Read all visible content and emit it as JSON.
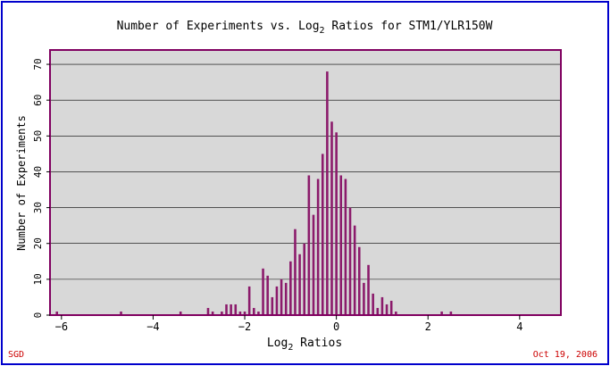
{
  "colors": {
    "border": "#0000cc",
    "plot_bg": "#d8d8d8",
    "plot_border": "#800060",
    "bar": "#8b1a6b",
    "grid": "#000000",
    "footer_text": "#cc0000"
  },
  "footer": {
    "left": "SGD",
    "right": "Oct 19, 2006"
  },
  "chart_data": {
    "type": "bar",
    "title_prefix": "Number of Experiments vs. Log",
    "title_sub": "2",
    "title_suffix": " Ratios for STM1/YLR150W",
    "xlabel_prefix": "Log",
    "xlabel_sub": "2",
    "xlabel_suffix": " Ratios",
    "ylabel": "Number of Experiments",
    "xlim": [
      -6.25,
      4.9
    ],
    "ylim": [
      0,
      74
    ],
    "xticks": [
      -6,
      -4,
      -2,
      0,
      2,
      4
    ],
    "xtick_labels": [
      "−6",
      "−4",
      "−2",
      "0",
      "2",
      "4"
    ],
    "yticks": [
      0,
      10,
      20,
      30,
      40,
      50,
      60,
      70
    ],
    "grid": "horizontal",
    "bar_width": 0.05,
    "x": [
      -6.1,
      -4.7,
      -3.4,
      -2.8,
      -2.7,
      -2.5,
      -2.4,
      -2.3,
      -2.2,
      -2.1,
      -2.0,
      -1.9,
      -1.8,
      -1.7,
      -1.6,
      -1.5,
      -1.4,
      -1.3,
      -1.2,
      -1.1,
      -1.0,
      -0.9,
      -0.8,
      -0.7,
      -0.6,
      -0.5,
      -0.4,
      -0.3,
      -0.2,
      -0.1,
      0.0,
      0.1,
      0.2,
      0.3,
      0.4,
      0.5,
      0.6,
      0.7,
      0.8,
      0.9,
      1.0,
      1.1,
      1.2,
      1.3,
      2.3,
      2.5
    ],
    "values": [
      1,
      1,
      1,
      2,
      1,
      1,
      3,
      3,
      3,
      1,
      1,
      8,
      2,
      1,
      13,
      11,
      5,
      8,
      10,
      9,
      15,
      24,
      17,
      20,
      39,
      28,
      38,
      45,
      68,
      54,
      51,
      39,
      38,
      30,
      25,
      19,
      9,
      14,
      6,
      2,
      5,
      3,
      4,
      1,
      1,
      1
    ]
  }
}
